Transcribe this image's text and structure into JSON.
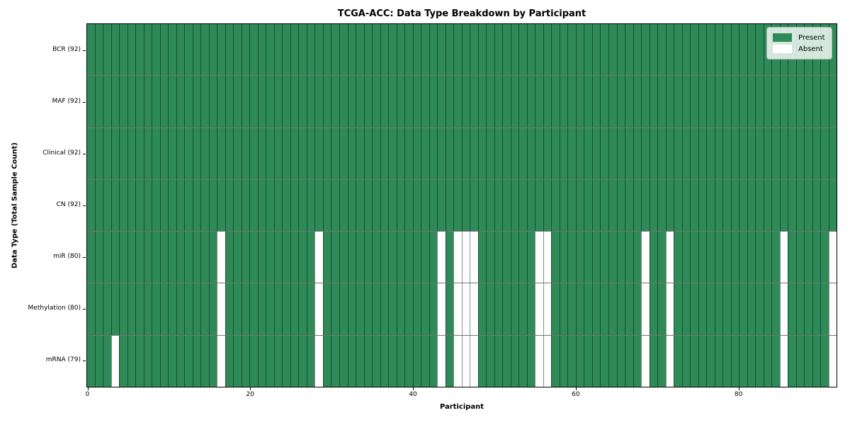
{
  "chart_data": {
    "type": "heatmap",
    "title": "TCGA-ACC: Data Type Breakdown by Participant",
    "xlabel": "Participant",
    "ylabel": "Data Type (Total Sample Count)",
    "n_participants": 92,
    "x_ticks": [
      0,
      20,
      40,
      60,
      80
    ],
    "x_range": [
      0,
      92
    ],
    "grid": false,
    "legend_position": "upper right",
    "legend": [
      {
        "label": "Present",
        "color": "#2e8b57"
      },
      {
        "label": "Absent",
        "color": "#ffffff"
      }
    ],
    "colors": {
      "present": "#2e8b57",
      "absent": "#ffffff",
      "cell_border": "rgba(0,0,0,0.45)",
      "row_border": "rgba(0,0,0,0.55)",
      "frame": "#000000"
    },
    "rows": [
      {
        "label": "BCR (92)",
        "data_type": "BCR",
        "present_count": 92,
        "absent_participants": []
      },
      {
        "label": "MAF (92)",
        "data_type": "MAF",
        "present_count": 92,
        "absent_participants": []
      },
      {
        "label": "Clinical (92)",
        "data_type": "Clinical",
        "present_count": 92,
        "absent_participants": []
      },
      {
        "label": "CN (92)",
        "data_type": "CN",
        "present_count": 92,
        "absent_participants": []
      },
      {
        "label": "miR (80)",
        "data_type": "miR",
        "present_count": 80,
        "absent_participants": [
          16,
          28,
          43,
          45,
          46,
          47,
          55,
          56,
          68,
          71,
          85,
          91
        ]
      },
      {
        "label": "Methylation (80)",
        "data_type": "Methylation",
        "present_count": 80,
        "absent_participants": [
          16,
          28,
          43,
          45,
          46,
          47,
          55,
          56,
          68,
          71,
          85,
          91
        ]
      },
      {
        "label": "mRNA (79)",
        "data_type": "mRNA",
        "present_count": 79,
        "absent_participants": [
          3,
          16,
          28,
          43,
          45,
          46,
          47,
          55,
          56,
          68,
          71,
          85,
          91
        ]
      }
    ]
  }
}
